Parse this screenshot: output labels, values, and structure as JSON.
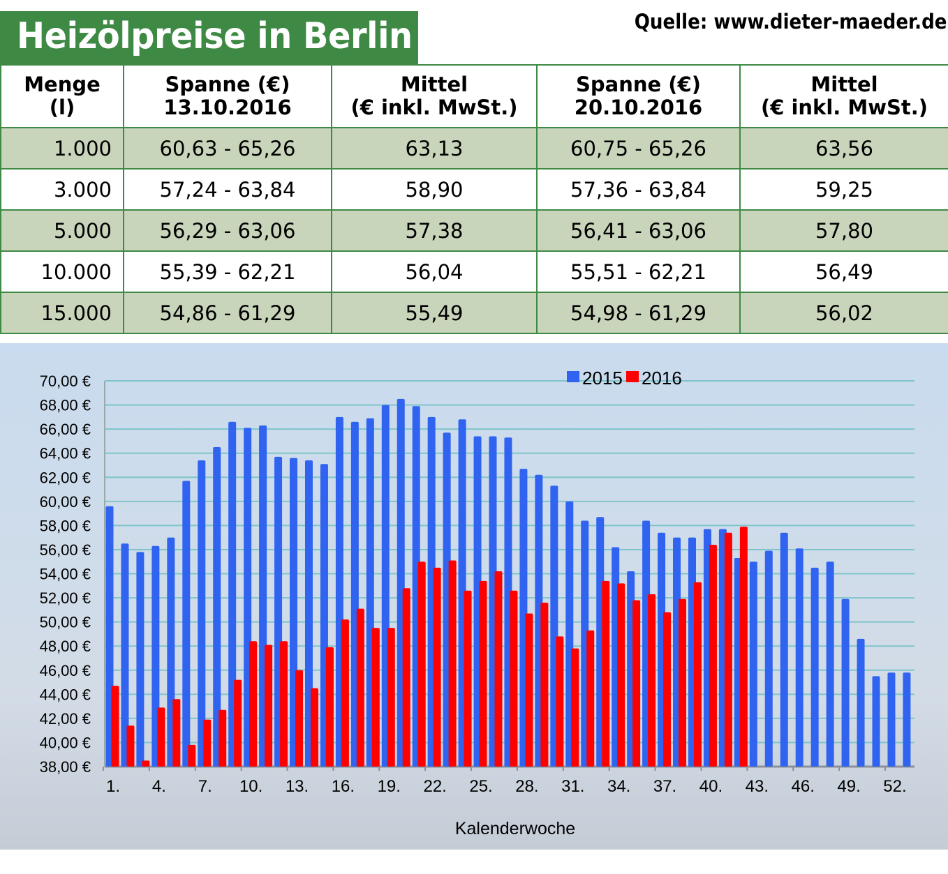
{
  "header": {
    "title": "Heizölpreise in Berlin",
    "source": "Quelle: www.dieter-maeder.de"
  },
  "table": {
    "columns": [
      [
        "Menge",
        "(l)"
      ],
      [
        "Spanne (€)",
        "13.10.2016"
      ],
      [
        "Mittel",
        "(€ inkl. MwSt.)"
      ],
      [
        "Spanne (€)",
        "20.10.2016"
      ],
      [
        "Mittel",
        "(€ inkl. MwSt.)"
      ]
    ],
    "rows": [
      [
        "1.000",
        "60,63 - 65,26",
        "63,13",
        "60,75 - 65,26",
        "63,56"
      ],
      [
        "3.000",
        "57,24 - 63,84",
        "58,90",
        "57,36 - 63,84",
        "59,25"
      ],
      [
        "5.000",
        "56,29 - 63,06",
        "57,38",
        "56,41 - 63,06",
        "57,80"
      ],
      [
        "10.000",
        "55,39 - 62,21",
        "56,04",
        "55,51 - 62,21",
        "56,49"
      ],
      [
        "15.000",
        "54,86 - 61,29",
        "55,49",
        "54,98 - 61,29",
        "56,02"
      ]
    ]
  },
  "colors": {
    "header_green": "#3e8a45",
    "row_shade": "#c9d5bb",
    "series_2015": "#2f63f0",
    "series_2016": "#ff0000",
    "grid": "#7fc4cc"
  },
  "chart_data": {
    "type": "bar",
    "xlabel": "Kalenderwoche",
    "ylabel": "",
    "ylim": [
      38,
      70
    ],
    "yticks": [
      "38,00 €",
      "40,00 €",
      "42,00 €",
      "44,00 €",
      "46,00 €",
      "48,00 €",
      "50,00 €",
      "52,00 €",
      "54,00 €",
      "56,00 €",
      "58,00 €",
      "60,00 €",
      "62,00 €",
      "64,00 €",
      "66,00 €",
      "68,00 €",
      "70,00 €"
    ],
    "xticks": [
      "1.",
      "4.",
      "7.",
      "10.",
      "13.",
      "16.",
      "19.",
      "22.",
      "25.",
      "28.",
      "31.",
      "34.",
      "37.",
      "40.",
      "43.",
      "46.",
      "49.",
      "52."
    ],
    "grid": true,
    "legend": "top-center",
    "series": [
      {
        "name": "2015",
        "color": "#2f63f0",
        "weeks_start": 1,
        "values": [
          59.6,
          56.5,
          55.8,
          56.3,
          57.0,
          61.7,
          63.4,
          64.5,
          66.6,
          66.1,
          66.3,
          63.7,
          63.6,
          63.4,
          63.1,
          67.0,
          66.6,
          66.9,
          68.0,
          68.5,
          67.9,
          67.0,
          65.7,
          66.8,
          65.4,
          65.4,
          65.3,
          62.7,
          62.2,
          61.3,
          60.0,
          58.4,
          58.7,
          56.2,
          54.2,
          58.4,
          57.4,
          57.0,
          57.0,
          57.7,
          57.7,
          55.3,
          55.0,
          55.9,
          57.4,
          56.1,
          54.5,
          55.0,
          51.9,
          48.6,
          45.5,
          45.8,
          45.8
        ]
      },
      {
        "name": "2016",
        "color": "#ff0000",
        "weeks_start": 1,
        "values": [
          44.7,
          41.4,
          38.5,
          42.9,
          43.6,
          39.8,
          41.9,
          42.7,
          45.2,
          48.4,
          48.1,
          48.4,
          46.0,
          44.5,
          47.9,
          50.2,
          51.1,
          49.5,
          49.5,
          52.8,
          55.0,
          54.5,
          55.1,
          52.6,
          53.4,
          54.2,
          52.6,
          50.7,
          51.6,
          48.8,
          47.8,
          49.3,
          53.4,
          53.2,
          51.8,
          52.3,
          50.8,
          51.9,
          53.3,
          56.4,
          57.4,
          57.9
        ]
      }
    ]
  }
}
